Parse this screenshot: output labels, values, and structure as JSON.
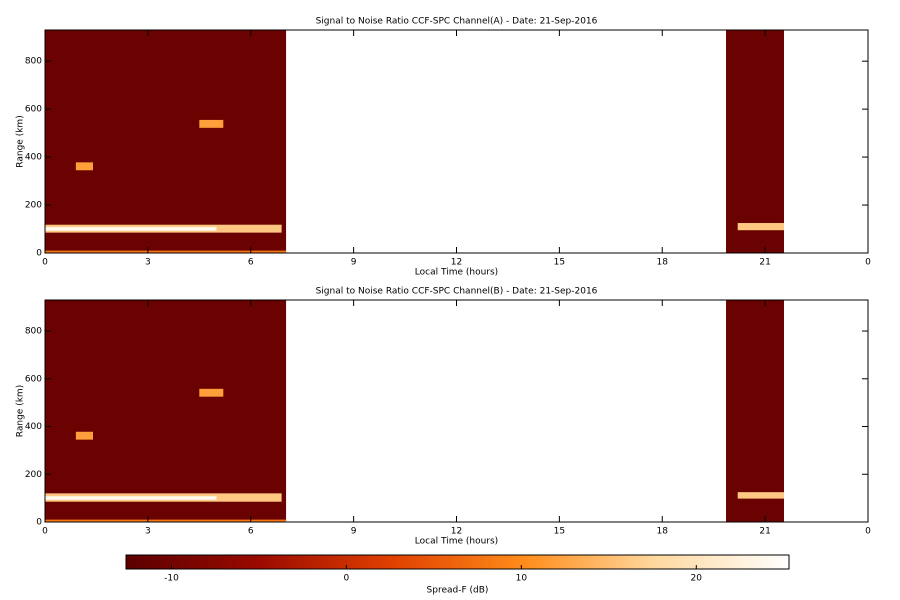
{
  "chart_data": [
    {
      "type": "heatmap",
      "title": "Signal to Noise Ratio CCF-SPC Channel(A) - Date: 21-Sep-2016",
      "xlabel": "Local Time (hours)",
      "ylabel": "Range (km)",
      "xlim": [
        0,
        24
      ],
      "xticks": [
        0,
        3,
        6,
        9,
        12,
        15,
        18,
        21,
        {
          "value": 24,
          "label": "0"
        }
      ],
      "ylim": [
        0,
        930
      ],
      "yticks": [
        0,
        200,
        400,
        600,
        800
      ],
      "cells": [
        {
          "x": [
            0,
            7.03
          ],
          "y": [
            0,
            930
          ],
          "value": -11
        },
        {
          "x": [
            0,
            6.9
          ],
          "y": [
            85,
            118
          ],
          "value": 16
        },
        {
          "x": [
            0,
            5
          ],
          "y": [
            93,
            108
          ],
          "value": 24
        },
        {
          "x": [
            0.9,
            1.4
          ],
          "y": [
            345,
            378
          ],
          "value": 12
        },
        {
          "x": [
            4.5,
            5.2
          ],
          "y": [
            522,
            555
          ],
          "value": 12
        },
        {
          "x": [
            0,
            7.03
          ],
          "y": [
            0,
            10
          ],
          "value": 8
        },
        {
          "x": [
            19.86,
            21.55
          ],
          "y": [
            0,
            930
          ],
          "value": -11
        },
        {
          "x": [
            20.2,
            21.55
          ],
          "y": [
            95,
            125
          ],
          "value": 16
        }
      ]
    },
    {
      "type": "heatmap",
      "title": "Signal to Noise Ratio CCF-SPC Channel(B) - Date: 21-Sep-2016",
      "xlabel": "Local Time (hours)",
      "ylabel": "Range (km)",
      "xlim": [
        0,
        24
      ],
      "xticks": [
        0,
        3,
        6,
        9,
        12,
        15,
        18,
        21,
        {
          "value": 24,
          "label": "0"
        }
      ],
      "ylim": [
        0,
        930
      ],
      "yticks": [
        0,
        200,
        400,
        600,
        800
      ],
      "cells": [
        {
          "x": [
            0,
            7.03
          ],
          "y": [
            0,
            930
          ],
          "value": -11
        },
        {
          "x": [
            0,
            6.9
          ],
          "y": [
            85,
            120
          ],
          "value": 16
        },
        {
          "x": [
            0,
            5
          ],
          "y": [
            93,
            108
          ],
          "value": 24
        },
        {
          "x": [
            0.9,
            1.4
          ],
          "y": [
            345,
            378
          ],
          "value": 12
        },
        {
          "x": [
            4.5,
            5.2
          ],
          "y": [
            525,
            558
          ],
          "value": 12
        },
        {
          "x": [
            0,
            7.03
          ],
          "y": [
            0,
            10
          ],
          "value": 8
        },
        {
          "x": [
            19.86,
            21.55
          ],
          "y": [
            0,
            930
          ],
          "value": -11
        },
        {
          "x": [
            20.2,
            21.55
          ],
          "y": [
            98,
            125
          ],
          "value": 16
        }
      ]
    },
    {
      "type": "colorbar",
      "label": "Spread-F (dB)",
      "lim": [
        -12.6,
        25.3
      ],
      "ticks": [
        -10,
        0,
        10,
        20
      ],
      "colormap": [
        "#5c0000",
        "#9a0a00",
        "#e04000",
        "#ff8c1a",
        "#ffd9a0",
        "#ffffff"
      ]
    }
  ]
}
